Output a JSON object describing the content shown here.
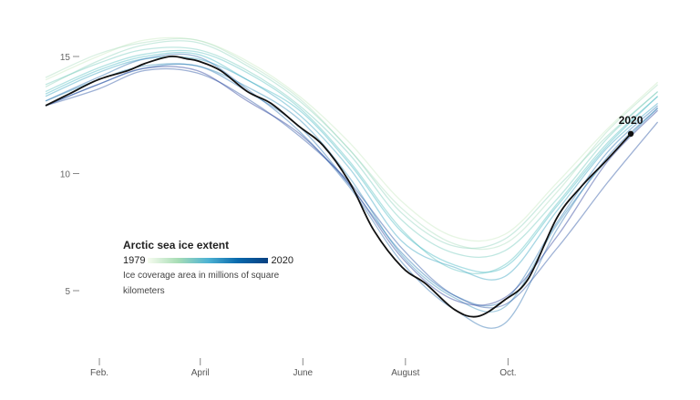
{
  "chart_data": {
    "type": "line",
    "title": "Arctic sea ice extent",
    "subtitle": "Ice coverage area in millions of square kilometers",
    "legend": {
      "start_label": "1979",
      "end_label": "2020",
      "placement": "bottom-left",
      "colors": [
        "#f7fcf0",
        "#a8ddb5",
        "#4eb3d3",
        "#0868ac",
        "#084081"
      ]
    },
    "x_unit": "day of year",
    "xlim": [
      1,
      365
    ],
    "ylim": [
      3,
      16.3
    ],
    "grid": false,
    "y_ticks": [
      {
        "value": 15,
        "label": "15"
      },
      {
        "value": 10,
        "label": "10"
      },
      {
        "value": 5,
        "label": "5"
      }
    ],
    "x_ticks": [
      {
        "day": 33,
        "label": "Feb."
      },
      {
        "day": 93,
        "label": "April"
      },
      {
        "day": 154,
        "label": "June"
      },
      {
        "day": 215,
        "label": "August"
      },
      {
        "day": 276,
        "label": "Oct."
      }
    ],
    "monthly_days": [
      1,
      32,
      60,
      91,
      121,
      152,
      182,
      213,
      244,
      274,
      305,
      335,
      365
    ],
    "series": [
      {
        "name": "1979",
        "values": [
          14.0,
          15.0,
          15.7,
          15.7,
          14.8,
          13.3,
          11.3,
          8.8,
          7.3,
          7.4,
          9.6,
          11.9,
          13.9
        ]
      },
      {
        "name": "1983",
        "values": [
          14.1,
          15.1,
          15.6,
          15.7,
          14.7,
          13.2,
          11.0,
          8.5,
          7.0,
          7.0,
          9.2,
          11.8,
          13.8
        ]
      },
      {
        "name": "1987",
        "values": [
          13.7,
          14.8,
          15.5,
          15.6,
          14.6,
          13.1,
          11.0,
          8.3,
          6.9,
          7.2,
          9.4,
          11.6,
          13.5
        ]
      },
      {
        "name": "1991",
        "values": [
          13.8,
          14.7,
          15.3,
          15.3,
          14.4,
          12.9,
          10.8,
          8.0,
          6.6,
          6.7,
          8.9,
          11.5,
          13.5
        ]
      },
      {
        "name": "1995",
        "values": [
          13.5,
          14.5,
          15.1,
          15.2,
          14.3,
          12.8,
          10.5,
          7.6,
          5.9,
          6.1,
          8.7,
          11.3,
          13.3
        ]
      },
      {
        "name": "1999",
        "values": [
          13.4,
          14.4,
          15.0,
          15.1,
          14.0,
          12.7,
          10.4,
          7.5,
          6.1,
          6.0,
          8.6,
          11.2,
          13.3
        ]
      },
      {
        "name": "2003",
        "values": [
          13.3,
          14.3,
          14.9,
          14.9,
          14.0,
          12.5,
          10.2,
          7.1,
          6.0,
          5.6,
          8.4,
          11.1,
          13.0
        ]
      },
      {
        "name": "2007",
        "values": [
          13.1,
          14.0,
          14.6,
          14.6,
          13.7,
          12.3,
          9.8,
          6.5,
          4.7,
          4.3,
          7.8,
          10.6,
          12.8
        ]
      },
      {
        "name": "2011",
        "values": [
          12.9,
          13.8,
          14.5,
          14.6,
          13.5,
          12.0,
          9.5,
          6.6,
          4.8,
          4.6,
          7.9,
          10.9,
          12.9
        ]
      },
      {
        "name": "2012",
        "values": [
          13.1,
          14.1,
          14.9,
          15.0,
          13.6,
          11.8,
          9.4,
          6.2,
          4.2,
          3.6,
          7.6,
          10.7,
          12.8
        ]
      },
      {
        "name": "2016",
        "values": [
          12.9,
          13.6,
          14.4,
          14.3,
          13.2,
          11.6,
          9.6,
          6.8,
          4.8,
          4.4,
          6.8,
          9.6,
          12.2
        ]
      },
      {
        "name": "2019",
        "values": [
          12.9,
          13.8,
          14.5,
          14.4,
          13.1,
          11.7,
          9.5,
          6.4,
          4.6,
          4.7,
          7.3,
          10.5,
          12.7
        ]
      }
    ],
    "highlight": {
      "name": "2020",
      "color": "#111111",
      "points": [
        [
          1,
          12.9
        ],
        [
          15,
          13.4
        ],
        [
          32,
          14.0
        ],
        [
          50,
          14.4
        ],
        [
          60,
          14.7
        ],
        [
          75,
          15.0
        ],
        [
          85,
          14.9
        ],
        [
          92,
          14.8
        ],
        [
          105,
          14.4
        ],
        [
          121,
          13.5
        ],
        [
          135,
          13.0
        ],
        [
          152,
          12.0
        ],
        [
          166,
          11.2
        ],
        [
          182,
          9.6
        ],
        [
          196,
          7.6
        ],
        [
          213,
          6.0
        ],
        [
          227,
          5.3
        ],
        [
          244,
          4.2
        ],
        [
          258,
          3.9
        ],
        [
          274,
          4.6
        ],
        [
          288,
          5.5
        ],
        [
          305,
          8.1
        ],
        [
          319,
          9.4
        ],
        [
          335,
          10.6
        ],
        [
          349,
          11.7
        ]
      ]
    }
  }
}
